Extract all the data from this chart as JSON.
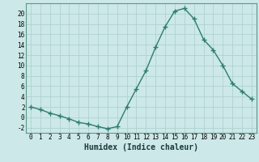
{
  "x": [
    0,
    1,
    2,
    3,
    4,
    5,
    6,
    7,
    8,
    9,
    10,
    11,
    12,
    13,
    14,
    15,
    16,
    17,
    18,
    19,
    20,
    21,
    22,
    23
  ],
  "y": [
    2.0,
    1.5,
    0.8,
    0.3,
    -0.3,
    -1.0,
    -1.3,
    -1.8,
    -2.2,
    -1.8,
    2.0,
    5.5,
    9.0,
    13.5,
    17.5,
    20.5,
    21.0,
    19.0,
    15.0,
    13.0,
    10.0,
    6.5,
    5.0,
    3.5
  ],
  "line_color": "#2d7d6e",
  "marker": "+",
  "marker_size": 4,
  "marker_linewidth": 1.0,
  "bg_color": "#cce8e8",
  "grid_color": "#aacece",
  "xlabel": "Humidex (Indice chaleur)",
  "xlim": [
    -0.5,
    23.5
  ],
  "ylim": [
    -3,
    22
  ],
  "xticks": [
    0,
    1,
    2,
    3,
    4,
    5,
    6,
    7,
    8,
    9,
    10,
    11,
    12,
    13,
    14,
    15,
    16,
    17,
    18,
    19,
    20,
    21,
    22,
    23
  ],
  "yticks": [
    -2,
    0,
    2,
    4,
    6,
    8,
    10,
    12,
    14,
    16,
    18,
    20
  ],
  "tick_fontsize": 5.5,
  "xlabel_fontsize": 7.0,
  "line_width": 1.0
}
